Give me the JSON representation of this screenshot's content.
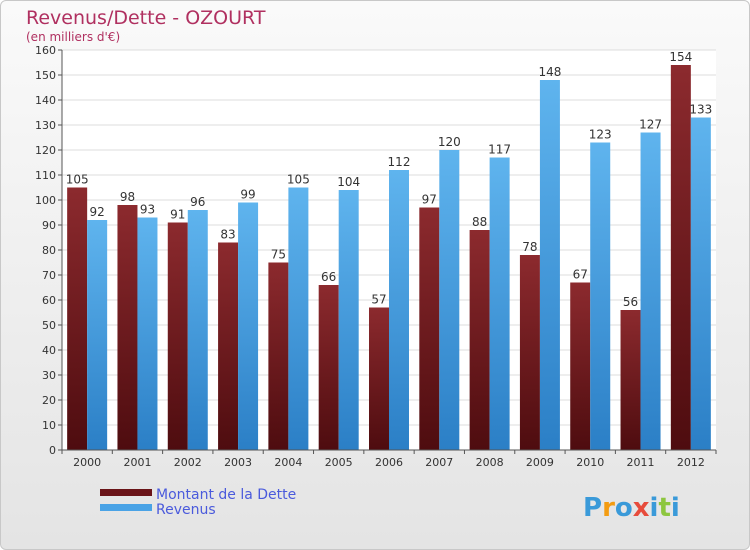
{
  "chart_data": {
    "type": "bar",
    "title": "Revenus/Dette - OZOURT",
    "subtitle": "(en milliers d'€)",
    "categories": [
      "2000",
      "2001",
      "2002",
      "2003",
      "2004",
      "2005",
      "2006",
      "2007",
      "2008",
      "2009",
      "2010",
      "2011",
      "2012"
    ],
    "series": [
      {
        "name": "Montant de la Dette",
        "color": "#7a1e22",
        "values": [
          105,
          98,
          91,
          83,
          75,
          66,
          57,
          97,
          88,
          78,
          67,
          56,
          154
        ]
      },
      {
        "name": "Revenus",
        "color": "#4aa3e6",
        "values": [
          92,
          93,
          96,
          99,
          105,
          104,
          112,
          120,
          117,
          148,
          123,
          127,
          133
        ]
      }
    ],
    "ylim": [
      0,
      160
    ],
    "yticks": [
      0,
      10,
      20,
      30,
      40,
      50,
      60,
      70,
      80,
      90,
      100,
      110,
      120,
      130,
      140,
      150,
      160
    ],
    "grid": true,
    "legend": "bottom-left"
  },
  "logo": {
    "letters": [
      "P",
      "r",
      "o",
      "x",
      "i",
      "t",
      "i"
    ],
    "colors": [
      "#3a9ad9",
      "#f39c12",
      "#3a9ad9",
      "#e74c3c",
      "#3a9ad9",
      "#8dc63f",
      "#3a9ad9"
    ]
  }
}
